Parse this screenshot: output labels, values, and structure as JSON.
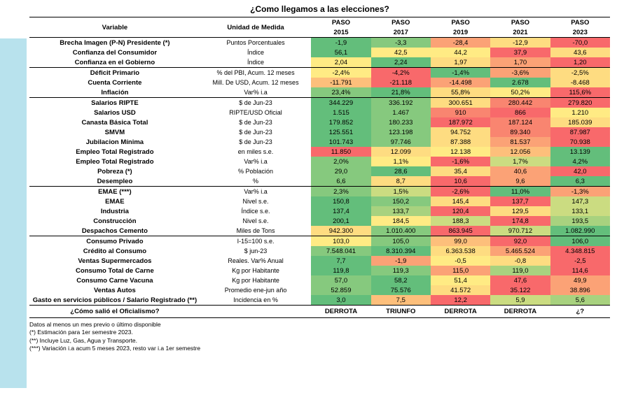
{
  "title": "¿Como llegamos a las elecciones?",
  "headers": {
    "variable": "Variable",
    "unit": "Unidad de Medida",
    "paso_prefix": "PASO",
    "years": [
      "2015",
      "2017",
      "2019",
      "2021",
      "2023"
    ]
  },
  "palette": {
    "g1": "#63be7b",
    "g2": "#86c97e",
    "g3": "#a8d27f",
    "g4": "#cbdc81",
    "y1": "#ffeb84",
    "y2": "#fedc81",
    "o1": "#fdbf7b",
    "o2": "#fba276",
    "r1": "#f98570",
    "r2": "#f8696b"
  },
  "rows": [
    {
      "section": "top",
      "var": "Brecha Imagen (P-N) Presidente (*)",
      "unit": "Puntos Porcentuales",
      "cells": [
        {
          "v": "-1,9",
          "c": "g1"
        },
        {
          "v": "-3,3",
          "c": "g2"
        },
        {
          "v": "-28,4",
          "c": "o2"
        },
        {
          "v": "-12,9",
          "c": "y2"
        },
        {
          "v": "-70,0",
          "c": "r2"
        }
      ]
    },
    {
      "var": "Confianza del Consumidor",
      "unit": "Índice",
      "cells": [
        {
          "v": "56,1",
          "c": "g1"
        },
        {
          "v": "42,5",
          "c": "y1"
        },
        {
          "v": "44,2",
          "c": "y1"
        },
        {
          "v": "37,9",
          "c": "r2"
        },
        {
          "v": "43,6",
          "c": "y2"
        }
      ]
    },
    {
      "var": "Confianza en el Gobierno",
      "unit": "Índice",
      "cells": [
        {
          "v": "2,04",
          "c": "y1"
        },
        {
          "v": "2,24",
          "c": "g1"
        },
        {
          "v": "1,97",
          "c": "y2"
        },
        {
          "v": "1,70",
          "c": "o2"
        },
        {
          "v": "1,20",
          "c": "r2"
        }
      ]
    },
    {
      "section": "top",
      "var": "Déficit Primario",
      "unit": "% del PBI, Acum. 12 meses",
      "cells": [
        {
          "v": "-2,4%",
          "c": "y1"
        },
        {
          "v": "-4,2%",
          "c": "r2"
        },
        {
          "v": "-1,4%",
          "c": "g1"
        },
        {
          "v": "-3,6%",
          "c": "o2"
        },
        {
          "v": "-2,5%",
          "c": "y2"
        }
      ]
    },
    {
      "var": "Cuenta Corriente",
      "unit": "Mill. De USD, Acum. 12 meses",
      "cells": [
        {
          "v": "-11.791",
          "c": "o1"
        },
        {
          "v": "-21.118",
          "c": "r2"
        },
        {
          "v": "-14.498",
          "c": "o2"
        },
        {
          "v": "2.678",
          "c": "g1"
        },
        {
          "v": "-8.468",
          "c": "y2"
        }
      ]
    },
    {
      "section": "bot",
      "var": "Inflación",
      "unit": "Var% i.a",
      "cells": [
        {
          "v": "23,4%",
          "c": "g2"
        },
        {
          "v": "21,8%",
          "c": "g1"
        },
        {
          "v": "55,8%",
          "c": "y2"
        },
        {
          "v": "50,2%",
          "c": "y1"
        },
        {
          "v": "115,6%",
          "c": "r2"
        }
      ]
    },
    {
      "var": "Salarios RIPTE",
      "unit": "$ de Jun-23",
      "cells": [
        {
          "v": "344.229",
          "c": "g1"
        },
        {
          "v": "336.192",
          "c": "g2"
        },
        {
          "v": "300.651",
          "c": "y2"
        },
        {
          "v": "280.442",
          "c": "r1"
        },
        {
          "v": "279.820",
          "c": "r2"
        }
      ]
    },
    {
      "var": "Salarios USD",
      "unit": "RIPTE/USD Oficial",
      "cells": [
        {
          "v": "1.515",
          "c": "g1"
        },
        {
          "v": "1.467",
          "c": "g2"
        },
        {
          "v": "910",
          "c": "r1"
        },
        {
          "v": "866",
          "c": "r2"
        },
        {
          "v": "1.210",
          "c": "y1"
        }
      ]
    },
    {
      "var": "Canasta Básica Total",
      "unit": "$ de Jun-23",
      "cells": [
        {
          "v": "179.852",
          "c": "g1"
        },
        {
          "v": "180.233",
          "c": "g2"
        },
        {
          "v": "187.972",
          "c": "r2"
        },
        {
          "v": "187.124",
          "c": "r1"
        },
        {
          "v": "185.039",
          "c": "y2"
        }
      ]
    },
    {
      "var": "SMVM",
      "unit": "$ de Jun-23",
      "cells": [
        {
          "v": "125.551",
          "c": "g1"
        },
        {
          "v": "123.198",
          "c": "g2"
        },
        {
          "v": "94.752",
          "c": "y2"
        },
        {
          "v": "89.340",
          "c": "r1"
        },
        {
          "v": "87.987",
          "c": "r2"
        }
      ]
    },
    {
      "var": "Jubilacion Mínima",
      "unit": "$ de Jun-23",
      "cells": [
        {
          "v": "101.743",
          "c": "g1"
        },
        {
          "v": "97.746",
          "c": "g2"
        },
        {
          "v": "87.388",
          "c": "y2"
        },
        {
          "v": "81.537",
          "c": "o2"
        },
        {
          "v": "70.938",
          "c": "r2"
        }
      ]
    },
    {
      "var": "Empleo Total Registrado",
      "unit": "en miles s.e.",
      "cells": [
        {
          "v": "11.850",
          "c": "r2"
        },
        {
          "v": "12.099",
          "c": "y2"
        },
        {
          "v": "12.138",
          "c": "y1"
        },
        {
          "v": "12.056",
          "c": "o1"
        },
        {
          "v": "13.139",
          "c": "g1"
        }
      ]
    },
    {
      "var": "Empleo Total Registrado",
      "unit": "Var% i.a",
      "cells": [
        {
          "v": "2,0%",
          "c": "g2"
        },
        {
          "v": "1,1%",
          "c": "y1"
        },
        {
          "v": "-1,6%",
          "c": "r2"
        },
        {
          "v": "1,7%",
          "c": "g4"
        },
        {
          "v": "4,2%",
          "c": "g1"
        }
      ]
    },
    {
      "var": "Pobreza (*)",
      "unit": "% Población",
      "cells": [
        {
          "v": "29,0",
          "c": "g2"
        },
        {
          "v": "28,6",
          "c": "g1"
        },
        {
          "v": "35,4",
          "c": "y2"
        },
        {
          "v": "40,6",
          "c": "o2"
        },
        {
          "v": "42,0",
          "c": "r2"
        }
      ]
    },
    {
      "section": "bot",
      "var": "Desempleo",
      "unit": "%",
      "cells": [
        {
          "v": "6,6",
          "c": "g2"
        },
        {
          "v": "8,7",
          "c": "y2"
        },
        {
          "v": "10,6",
          "c": "r2"
        },
        {
          "v": "9,6",
          "c": "o2"
        },
        {
          "v": "6,3",
          "c": "g1"
        }
      ]
    },
    {
      "var": "EMAE (***)",
      "unit": "Var% i.a",
      "cells": [
        {
          "v": "2,3%",
          "c": "g2"
        },
        {
          "v": "1,5%",
          "c": "g4"
        },
        {
          "v": "-2,6%",
          "c": "r2"
        },
        {
          "v": "11,0%",
          "c": "g1"
        },
        {
          "v": "-1,3%",
          "c": "o2"
        }
      ]
    },
    {
      "var": "EMAE",
      "unit": "Nivel s.e.",
      "cells": [
        {
          "v": "150,8",
          "c": "g1"
        },
        {
          "v": "150,2",
          "c": "g2"
        },
        {
          "v": "145,4",
          "c": "y2"
        },
        {
          "v": "137,7",
          "c": "r2"
        },
        {
          "v": "147,3",
          "c": "g4"
        }
      ]
    },
    {
      "var": "Industria",
      "unit": "Índice s.e.",
      "cells": [
        {
          "v": "137,4",
          "c": "g1"
        },
        {
          "v": "133,7",
          "c": "g3"
        },
        {
          "v": "120,4",
          "c": "r2"
        },
        {
          "v": "129,5",
          "c": "y2"
        },
        {
          "v": "133,1",
          "c": "g4"
        }
      ]
    },
    {
      "var": "Construcción",
      "unit": "Nivel s.e.",
      "cells": [
        {
          "v": "200,1",
          "c": "g1"
        },
        {
          "v": "184,5",
          "c": "y1"
        },
        {
          "v": "188,3",
          "c": "g4"
        },
        {
          "v": "174,8",
          "c": "r2"
        },
        {
          "v": "193,5",
          "c": "g3"
        }
      ]
    },
    {
      "section": "bot",
      "var": "Despachos Cemento",
      "unit": "Miles de Tons",
      "cells": [
        {
          "v": "942.300",
          "c": "y2"
        },
        {
          "v": "1.010.400",
          "c": "g2"
        },
        {
          "v": "863.945",
          "c": "r2"
        },
        {
          "v": "970.712",
          "c": "g4"
        },
        {
          "v": "1.082.990",
          "c": "g1"
        }
      ]
    },
    {
      "var": "Consumo Privado",
      "unit": "I-15=100 s.e.",
      "cells": [
        {
          "v": "103,0",
          "c": "y1"
        },
        {
          "v": "105,0",
          "c": "g2"
        },
        {
          "v": "99,0",
          "c": "o1"
        },
        {
          "v": "92,0",
          "c": "r2"
        },
        {
          "v": "106,0",
          "c": "g1"
        }
      ]
    },
    {
      "var": "Crédito al Consumo",
      "unit": "$ jun-23",
      "cells": [
        {
          "v": "7.548.041",
          "c": "g2"
        },
        {
          "v": "8.310.394",
          "c": "g1"
        },
        {
          "v": "6.363.538",
          "c": "y2"
        },
        {
          "v": "5.465.524",
          "c": "o2"
        },
        {
          "v": "4.348.815",
          "c": "r2"
        }
      ]
    },
    {
      "var": "Ventas Supermercados",
      "unit": "Reales. Var% Anual",
      "cells": [
        {
          "v": "7,7",
          "c": "g1"
        },
        {
          "v": "-1,9",
          "c": "o2"
        },
        {
          "v": "-0,5",
          "c": "y1"
        },
        {
          "v": "-0,8",
          "c": "y2"
        },
        {
          "v": "-2,5",
          "c": "r2"
        }
      ]
    },
    {
      "var": "Consumo Total de Carne",
      "unit": "Kg por Habitante",
      "cells": [
        {
          "v": "119,8",
          "c": "g1"
        },
        {
          "v": "119,3",
          "c": "g2"
        },
        {
          "v": "115,0",
          "c": "o2"
        },
        {
          "v": "119,0",
          "c": "g3"
        },
        {
          "v": "114,6",
          "c": "r2"
        }
      ]
    },
    {
      "var": "Consumo Carne Vacuna",
      "unit": "Kg por Habitante",
      "cells": [
        {
          "v": "57,0",
          "c": "g2"
        },
        {
          "v": "58,2",
          "c": "g1"
        },
        {
          "v": "51,4",
          "c": "y1"
        },
        {
          "v": "47,6",
          "c": "r2"
        },
        {
          "v": "49,9",
          "c": "o2"
        }
      ]
    },
    {
      "var": "Ventas Autos",
      "unit": "Promedio ene-jun año",
      "cells": [
        {
          "v": "52.859",
          "c": "g2"
        },
        {
          "v": "75.576",
          "c": "g1"
        },
        {
          "v": "41.572",
          "c": "y2"
        },
        {
          "v": "35.122",
          "c": "r2"
        },
        {
          "v": "38.896",
          "c": "o2"
        }
      ]
    },
    {
      "section": "bot",
      "var": "Gasto en servicios públicos / Salario Registrado (**)",
      "unit": "Incidencia en %",
      "cells": [
        {
          "v": "3,0",
          "c": "g1"
        },
        {
          "v": "7,5",
          "c": "o1"
        },
        {
          "v": "12,2",
          "c": "r2"
        },
        {
          "v": "5,9",
          "c": "g4"
        },
        {
          "v": "5,6",
          "c": "g3"
        }
      ]
    }
  ],
  "result_row": {
    "question": "¿Cómo salió el Oficialismo?",
    "values": [
      "DERROTA",
      "TRIUNFO",
      "DERROTA",
      "DERROTA",
      "¿?"
    ]
  },
  "footnotes": [
    "Datos al menos un mes previo o último disponible",
    "(*) Estimación para 1er semestre 2023.",
    "(**) Incluye Luz, Gas, Agua y Transporte.",
    "(***) Variación i.a acum 5 meses 2023, resto var i.a 1er semestre"
  ]
}
